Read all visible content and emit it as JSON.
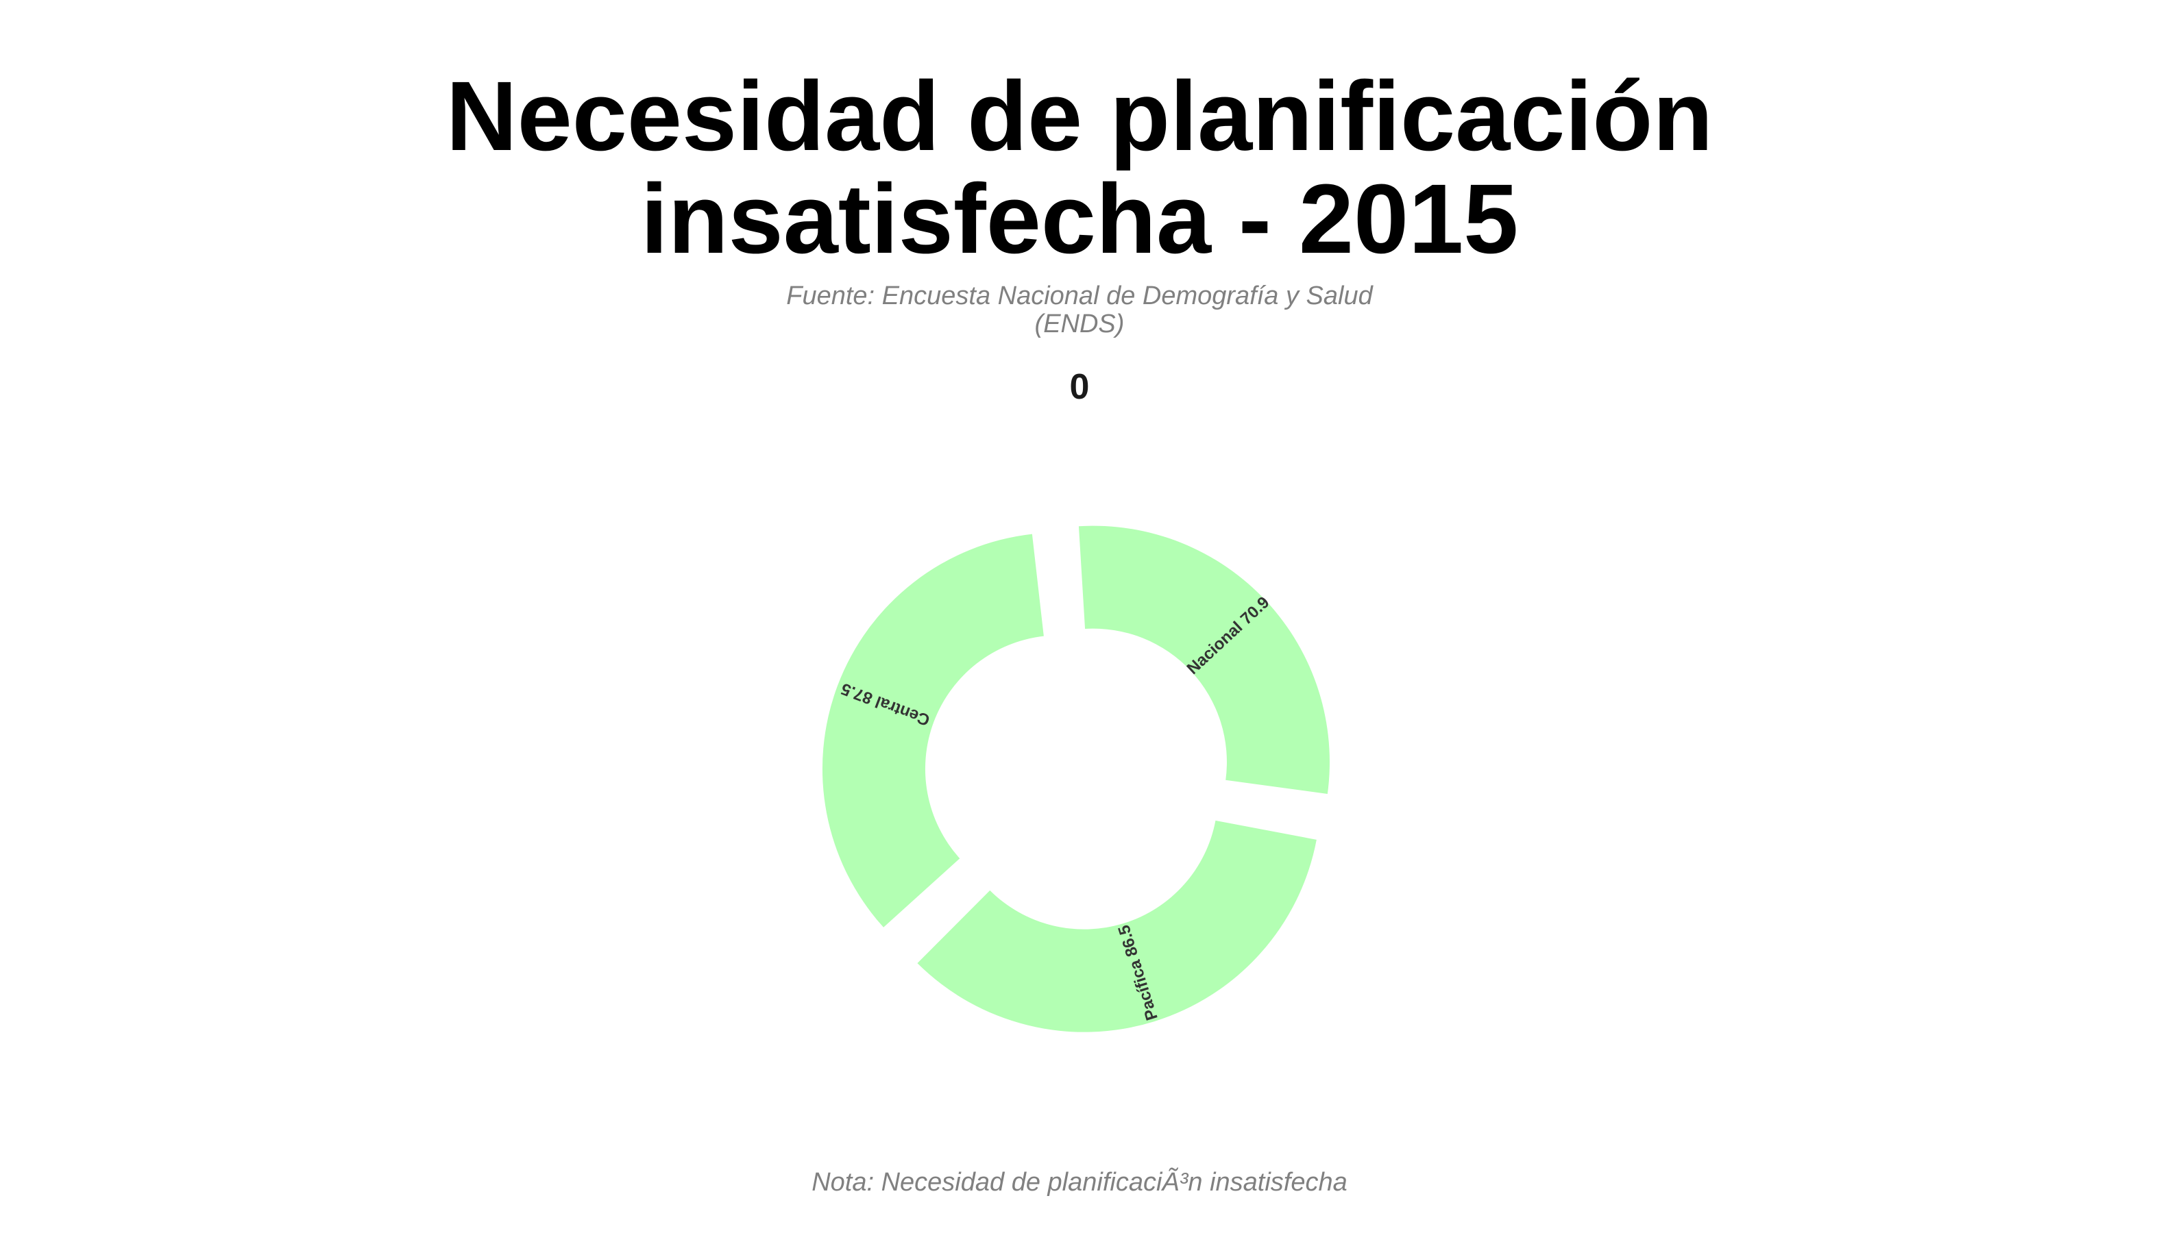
{
  "chart_data": {
    "type": "pie",
    "title_lines": [
      "Necesidad de planificación",
      "insatisfecha - 2015"
    ],
    "subtitle_lines": [
      "Fuente: Encuesta Nacional de Demografía y Salud",
      "(ENDS)"
    ],
    "center_label": "0",
    "note": "Nota: Necesidad de planificaciÃ³n insatisfecha",
    "categories": [
      "Nacional",
      "Pacífica",
      "Central"
    ],
    "values": [
      70.9,
      86.5,
      87.5
    ],
    "slice_labels": [
      "Nacional 70.9",
      "Pacífica 86.5",
      "Central 87.5"
    ],
    "color": "#b3ffb3",
    "label_color": "#333333"
  }
}
